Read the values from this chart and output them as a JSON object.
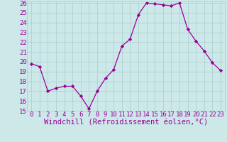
{
  "x": [
    0,
    1,
    2,
    3,
    4,
    5,
    6,
    7,
    8,
    9,
    10,
    11,
    12,
    13,
    14,
    15,
    16,
    17,
    18,
    19,
    20,
    21,
    22,
    23
  ],
  "y": [
    19.8,
    19.5,
    17.0,
    17.3,
    17.5,
    17.5,
    16.5,
    15.2,
    17.0,
    18.3,
    19.2,
    21.6,
    22.3,
    24.8,
    26.0,
    25.9,
    25.8,
    25.7,
    26.0,
    23.3,
    22.1,
    21.1,
    19.9,
    19.1
  ],
  "line_color": "#990099",
  "marker_color": "#990099",
  "bg_color": "#cce8e8",
  "grid_color": "#aacccc",
  "xlabel": "Windchill (Refroidissement éolien,°C)",
  "xlabel_color": "#990099",
  "ylim_min": 15,
  "ylim_max": 26,
  "xlim_min": -0.5,
  "xlim_max": 23.5,
  "yticks": [
    15,
    16,
    17,
    18,
    19,
    20,
    21,
    22,
    23,
    24,
    25,
    26
  ],
  "xticks": [
    0,
    1,
    2,
    3,
    4,
    5,
    6,
    7,
    8,
    9,
    10,
    11,
    12,
    13,
    14,
    15,
    16,
    17,
    18,
    19,
    20,
    21,
    22,
    23
  ],
  "tick_color": "#990099",
  "tick_fontsize": 6.5,
  "xlabel_fontsize": 7.5
}
